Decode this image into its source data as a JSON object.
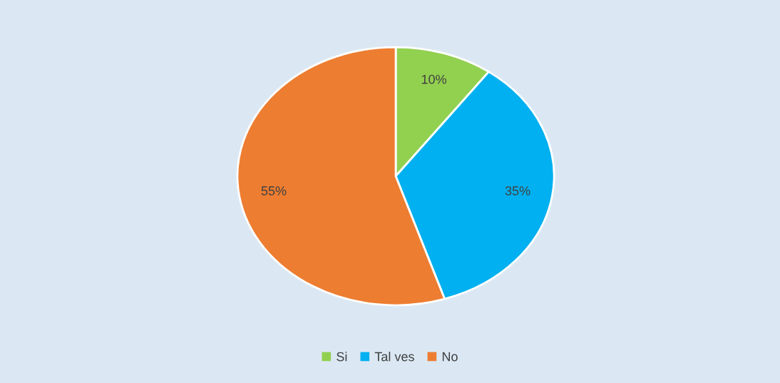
{
  "chart_data": {
    "type": "pie",
    "categories": [
      "Si",
      "Tal ves",
      "No"
    ],
    "values": [
      10,
      35,
      55
    ],
    "colors": [
      "#92d050",
      "#00b0f0",
      "#ed7d31"
    ],
    "value_labels": [
      "10%",
      "35%",
      "55%"
    ],
    "legend": "bottom"
  }
}
